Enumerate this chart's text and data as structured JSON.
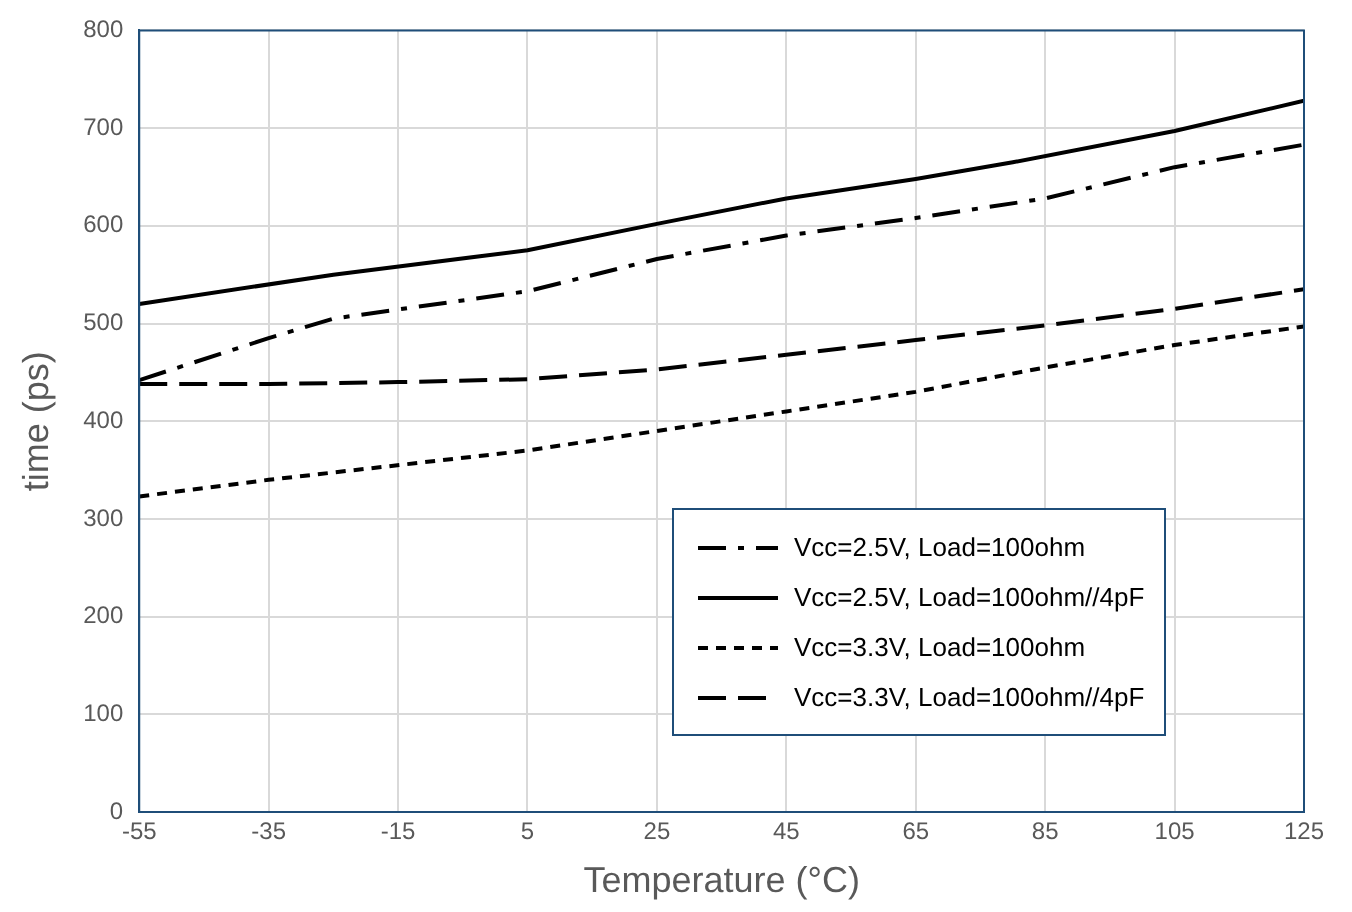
{
  "chart_data": {
    "type": "line",
    "xlabel": "Temperature (°C)",
    "ylabel": "time (ps)",
    "xlim": [
      -55,
      125
    ],
    "xticks": [
      -55,
      -35,
      -15,
      5,
      25,
      45,
      65,
      85,
      105,
      125
    ],
    "ylim": [
      0,
      800
    ],
    "yticks": [
      0,
      100,
      200,
      300,
      400,
      500,
      600,
      700,
      800
    ],
    "grid": true,
    "legend": "bottom right",
    "marker": "none",
    "series": [
      {
        "name": "Vcc=2.5V, Load=100ohm",
        "color": "#000000",
        "line_style": "dashdot",
        "x": [
          -55,
          -35,
          -25,
          5,
          25,
          45,
          65,
          85,
          105,
          125
        ],
        "values": [
          442,
          485,
          505,
          533,
          566,
          590,
          608,
          628,
          660,
          683
        ]
      },
      {
        "name": "Vcc=2.5V, Load=100ohm//4pF",
        "color": "#000000",
        "line_style": "solid",
        "x": [
          -55,
          -25,
          5,
          25,
          45,
          65,
          80,
          105,
          125
        ],
        "values": [
          520,
          550,
          575,
          602,
          628,
          648,
          665,
          697,
          728
        ]
      },
      {
        "name": "Vcc=3.3V, Load=100ohm",
        "color": "#000000",
        "line_style": "dotted",
        "x": [
          -55,
          -35,
          5,
          45,
          65,
          85,
          105,
          125
        ],
        "values": [
          323,
          340,
          370,
          410,
          430,
          455,
          478,
          497
        ]
      },
      {
        "name": "Vcc=3.3V, Load=100ohm//4pF",
        "color": "#000000",
        "line_style": "dashed",
        "x": [
          -55,
          -35,
          -15,
          5,
          25,
          45,
          65,
          85,
          105,
          125
        ],
        "values": [
          438,
          438,
          440,
          443,
          453,
          468,
          483,
          498,
          515,
          535
        ]
      }
    ]
  }
}
